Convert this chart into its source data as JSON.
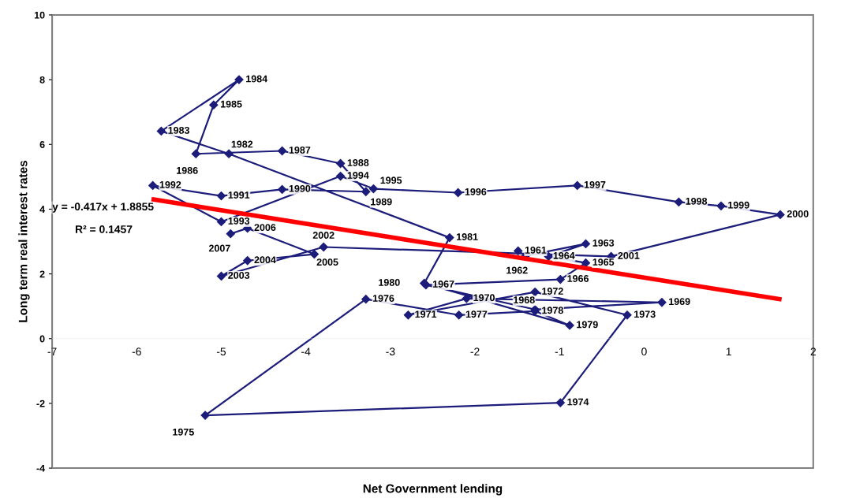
{
  "chart_data": {
    "type": "line",
    "xlabel": "Net Government lending",
    "ylabel": "Long term real interest rates",
    "xlim": [
      -7,
      2
    ],
    "xticks": [
      -7,
      -6,
      -5,
      -4,
      -3,
      -2,
      -1,
      0,
      1,
      2
    ],
    "ylim": [
      -4,
      10
    ],
    "yticks": [
      -4,
      -2,
      0,
      2,
      4,
      6,
      8,
      10
    ],
    "grid": false,
    "legend": false,
    "marker": "diamond",
    "series": [
      {
        "color": "#1c1c7a",
        "x": [
          -1.49,
          -1.4,
          -0.69,
          -1.13,
          -0.69,
          -0.99,
          -2.58,
          -1.29,
          0.21,
          -2.1,
          -2.79,
          -1.29,
          -0.2,
          -0.99,
          -5.19,
          -3.29,
          -2.19,
          -1.29,
          -0.88,
          -2.6,
          -2.3,
          -4.91,
          -5.71,
          -4.79,
          -5.09,
          -5.3,
          -4.28,
          -3.59,
          -3.29,
          -4.28,
          -5.0,
          -5.81,
          -5.0,
          -3.59,
          -3.2,
          -2.2,
          -0.79,
          0.41,
          0.91,
          1.61,
          -0.39,
          -3.79,
          -5.0,
          -4.69,
          -3.9,
          -4.69,
          -4.89
        ],
        "values": [
          2.71,
          2.56,
          2.93,
          2.54,
          2.34,
          1.83,
          1.66,
          0.9,
          1.12,
          1.24,
          0.73,
          1.44,
          0.73,
          -1.98,
          -2.37,
          1.22,
          0.73,
          0.85,
          0.41,
          1.71,
          3.12,
          5.71,
          6.41,
          8.0,
          7.22,
          5.71,
          5.8,
          5.41,
          4.54,
          4.61,
          4.41,
          4.73,
          3.61,
          5.02,
          4.63,
          4.51,
          4.73,
          4.22,
          4.1,
          3.83,
          2.54,
          2.83,
          1.93,
          2.41,
          2.61,
          3.41,
          3.24
        ]
      },
      {
        "type": "line",
        "marker": "none",
        "color": "#ff0000",
        "x": [
          -5.8,
          1.6
        ],
        "values": [
          4.3,
          1.22
        ]
      }
    ],
    "annotations": [
      {
        "text": "1961",
        "x": -1.49,
        "y": 2.71
      },
      {
        "text": "1962",
        "x": -1.4,
        "y": 2.56
      },
      {
        "text": "1963",
        "x": -0.69,
        "y": 2.93
      },
      {
        "text": "1964",
        "x": -1.13,
        "y": 2.54
      },
      {
        "text": "1965",
        "x": -0.69,
        "y": 2.34
      },
      {
        "text": "1966",
        "x": -0.99,
        "y": 1.83
      },
      {
        "text": "1967",
        "x": -2.58,
        "y": 1.66
      },
      {
        "text": "1968",
        "x": -1.29,
        "y": 0.9
      },
      {
        "text": "1969",
        "x": 0.21,
        "y": 1.12
      },
      {
        "text": "1970",
        "x": -2.1,
        "y": 1.24
      },
      {
        "text": "1971",
        "x": -2.79,
        "y": 0.73
      },
      {
        "text": "1972",
        "x": -1.29,
        "y": 1.44
      },
      {
        "text": "1973",
        "x": -0.2,
        "y": 0.73
      },
      {
        "text": "1974",
        "x": -0.99,
        "y": -1.98
      },
      {
        "text": "1975",
        "x": -5.19,
        "y": -2.37
      },
      {
        "text": "1976",
        "x": -3.29,
        "y": 1.22
      },
      {
        "text": "1977",
        "x": -2.19,
        "y": 0.73
      },
      {
        "text": "1978",
        "x": -1.29,
        "y": 0.85
      },
      {
        "text": "1979",
        "x": -0.88,
        "y": 0.41
      },
      {
        "text": "1980",
        "x": -2.6,
        "y": 1.71
      },
      {
        "text": "1981",
        "x": -2.3,
        "y": 3.12
      },
      {
        "text": "1982",
        "x": -4.91,
        "y": 5.71
      },
      {
        "text": "1983",
        "x": -5.71,
        "y": 6.41
      },
      {
        "text": "1984",
        "x": -4.79,
        "y": 8.0
      },
      {
        "text": "1985",
        "x": -5.09,
        "y": 7.22
      },
      {
        "text": "1986",
        "x": -5.3,
        "y": 5.71
      },
      {
        "text": "1987",
        "x": -4.28,
        "y": 5.8
      },
      {
        "text": "1988",
        "x": -3.59,
        "y": 5.41
      },
      {
        "text": "1989",
        "x": -3.29,
        "y": 4.54
      },
      {
        "text": "1990",
        "x": -4.28,
        "y": 4.61
      },
      {
        "text": "1991",
        "x": -5.0,
        "y": 4.41
      },
      {
        "text": "1992",
        "x": -5.81,
        "y": 4.73
      },
      {
        "text": "1993",
        "x": -5.0,
        "y": 3.61
      },
      {
        "text": "1994",
        "x": -3.59,
        "y": 5.02
      },
      {
        "text": "1995",
        "x": -3.2,
        "y": 4.63
      },
      {
        "text": "1996",
        "x": -2.2,
        "y": 4.51
      },
      {
        "text": "1997",
        "x": -0.79,
        "y": 4.73
      },
      {
        "text": "1998",
        "x": 0.41,
        "y": 4.22
      },
      {
        "text": "1999",
        "x": 0.91,
        "y": 4.1
      },
      {
        "text": "2000",
        "x": 1.61,
        "y": 3.83
      },
      {
        "text": "2001",
        "x": -0.39,
        "y": 2.54
      },
      {
        "text": "2002",
        "x": -3.79,
        "y": 2.83
      },
      {
        "text": "2003",
        "x": -5.0,
        "y": 1.93
      },
      {
        "text": "2004",
        "x": -4.69,
        "y": 2.41
      },
      {
        "text": "2005",
        "x": -3.9,
        "y": 2.61
      },
      {
        "text": "2006",
        "x": -4.69,
        "y": 3.41
      },
      {
        "text": "2007",
        "x": -4.89,
        "y": 3.24
      },
      "y = -0.417x + 1.8855",
      "R² = 0.1457"
    ]
  }
}
